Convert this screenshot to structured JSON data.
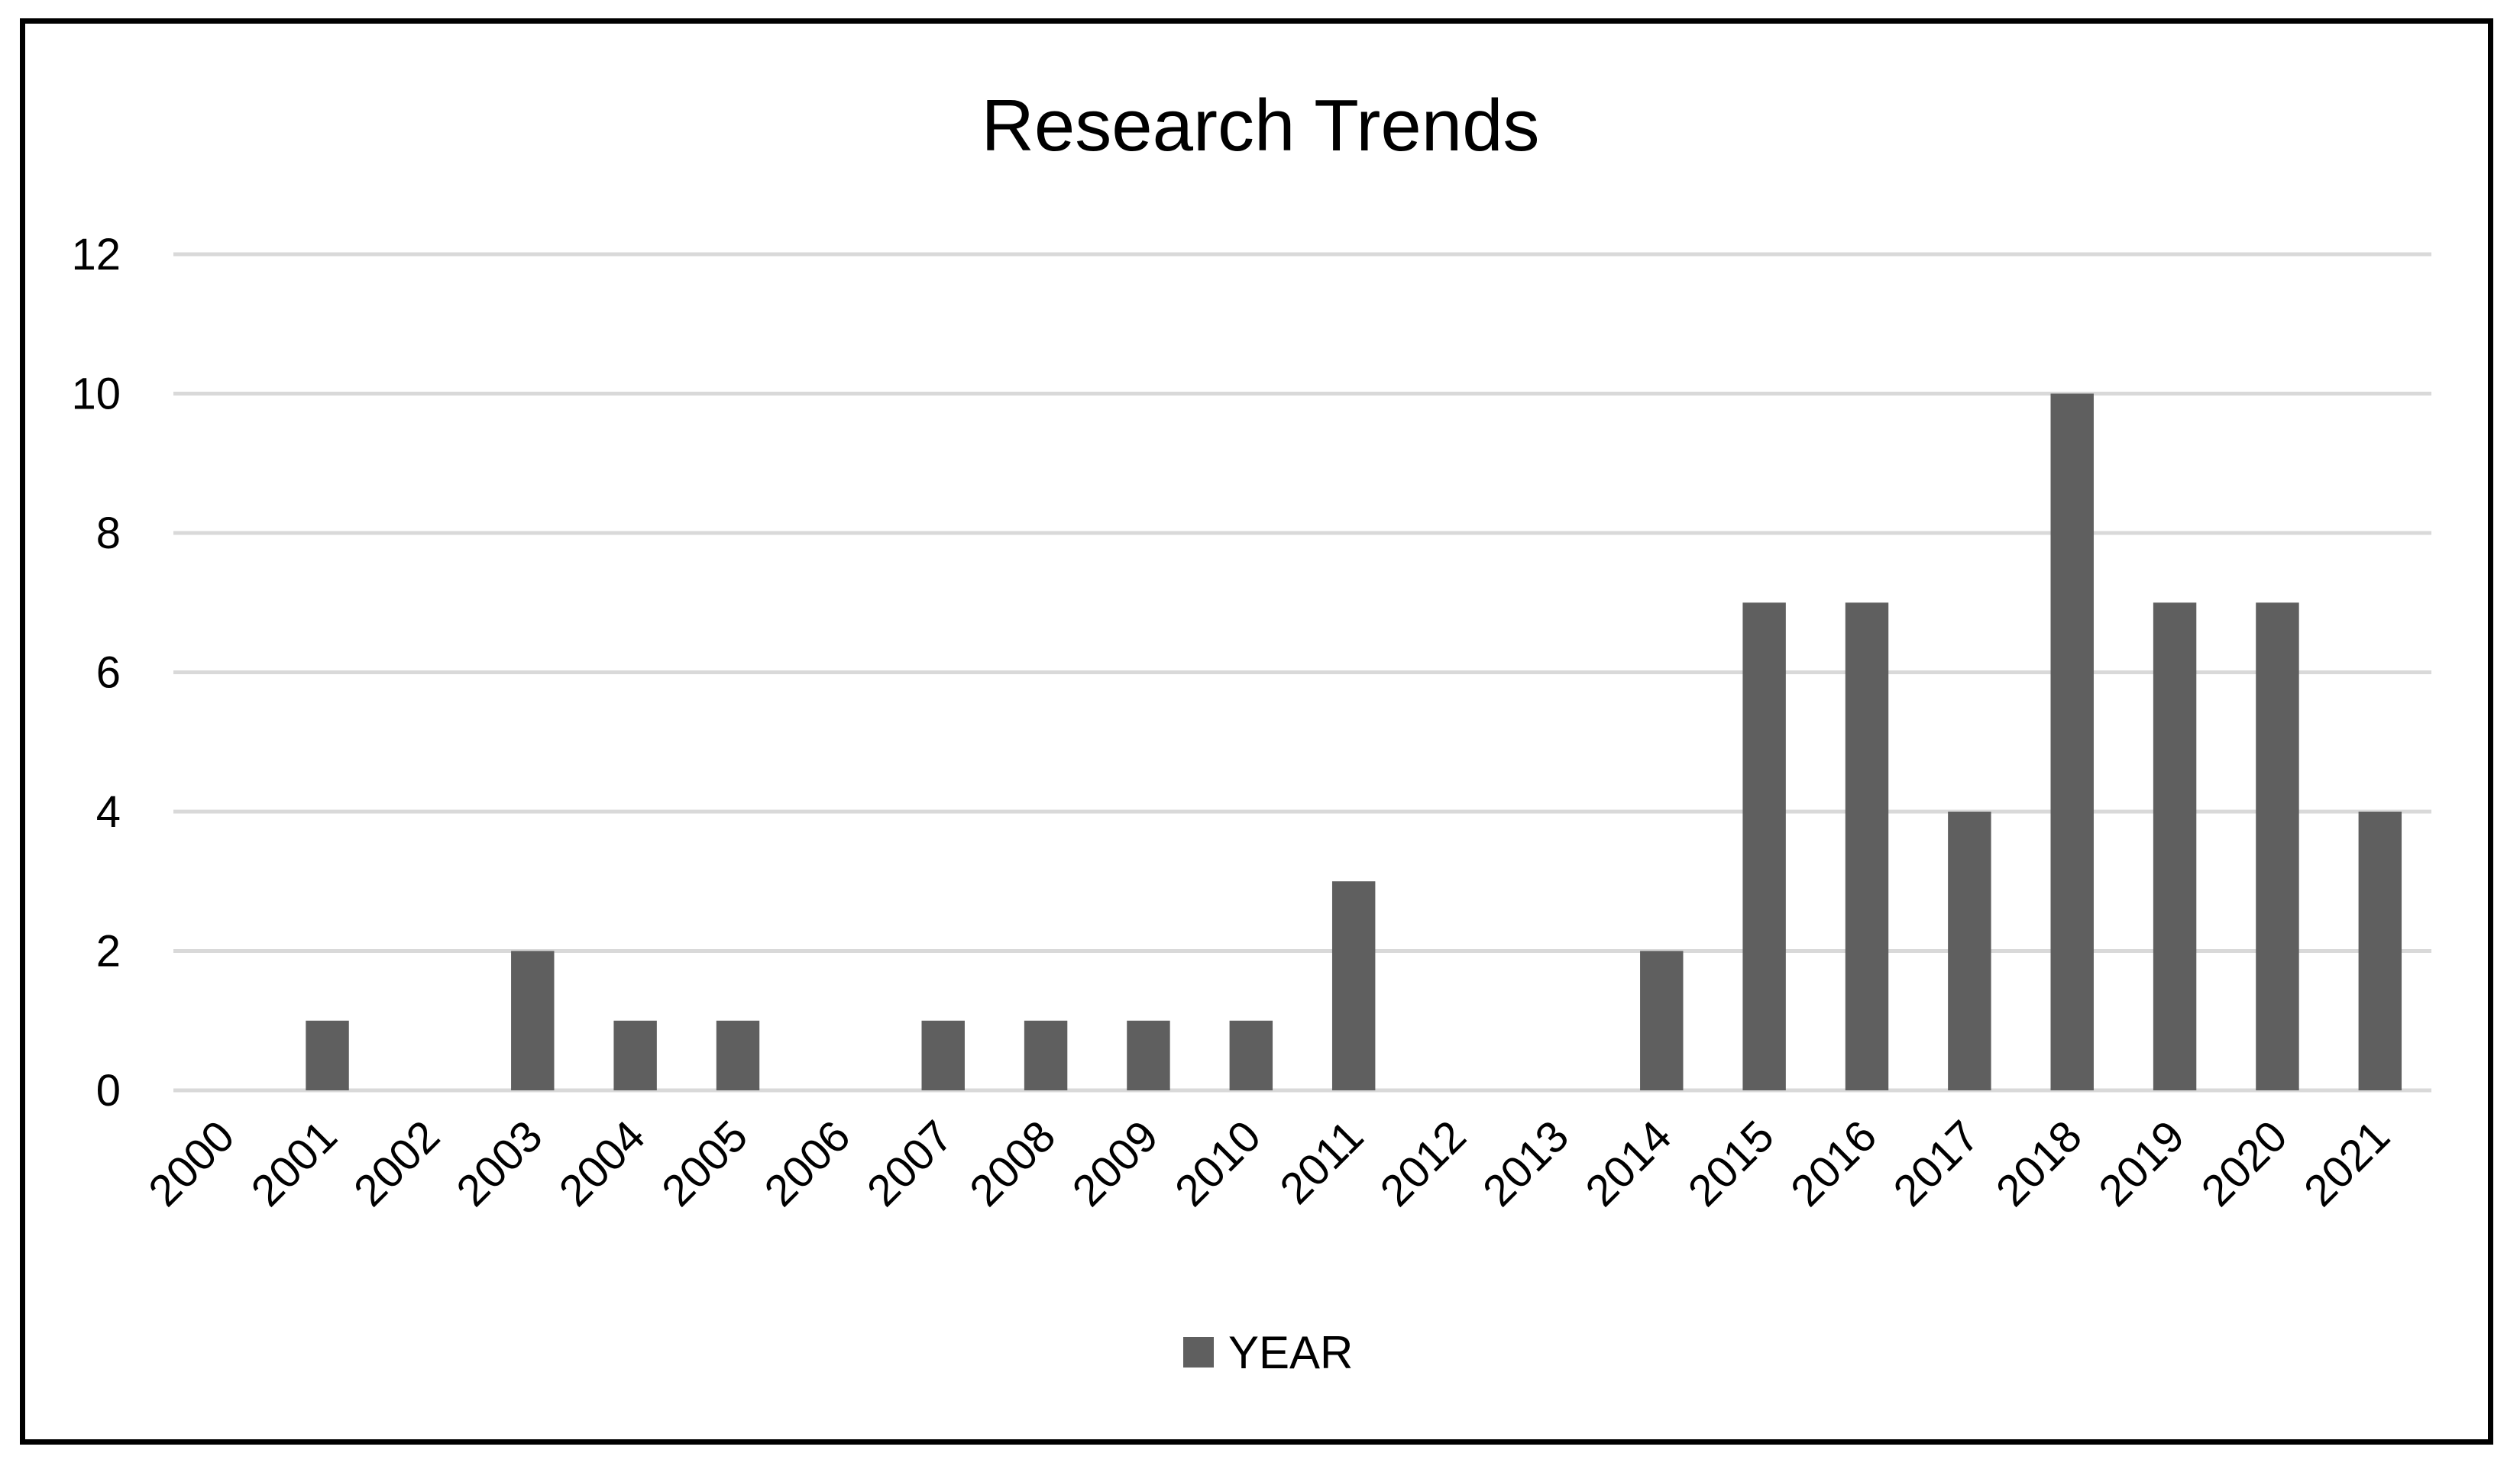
{
  "chart_data": {
    "type": "bar",
    "title": "Research Trends",
    "xlabel": "",
    "ylabel": "",
    "categories": [
      "2000",
      "2001",
      "2002",
      "2003",
      "2004",
      "2005",
      "2006",
      "2007",
      "2008",
      "2009",
      "2010",
      "2011",
      "2012",
      "2013",
      "2014",
      "2015",
      "2016",
      "2017",
      "2018",
      "2019",
      "2020",
      "2021"
    ],
    "series": [
      {
        "name": "YEAR",
        "values": [
          0,
          1,
          0,
          2,
          1,
          1,
          0,
          1,
          1,
          1,
          1,
          3,
          0,
          0,
          2,
          7,
          7,
          4,
          10,
          7,
          7,
          4
        ]
      }
    ],
    "ylim": [
      0,
      12
    ],
    "yticks": [
      0,
      2,
      4,
      6,
      8,
      10,
      12
    ],
    "grid": true,
    "legend_position": "bottom",
    "colors": {
      "bar": "#5f5f5f",
      "grid": "#d9d9d9",
      "frame": "#000000"
    }
  }
}
